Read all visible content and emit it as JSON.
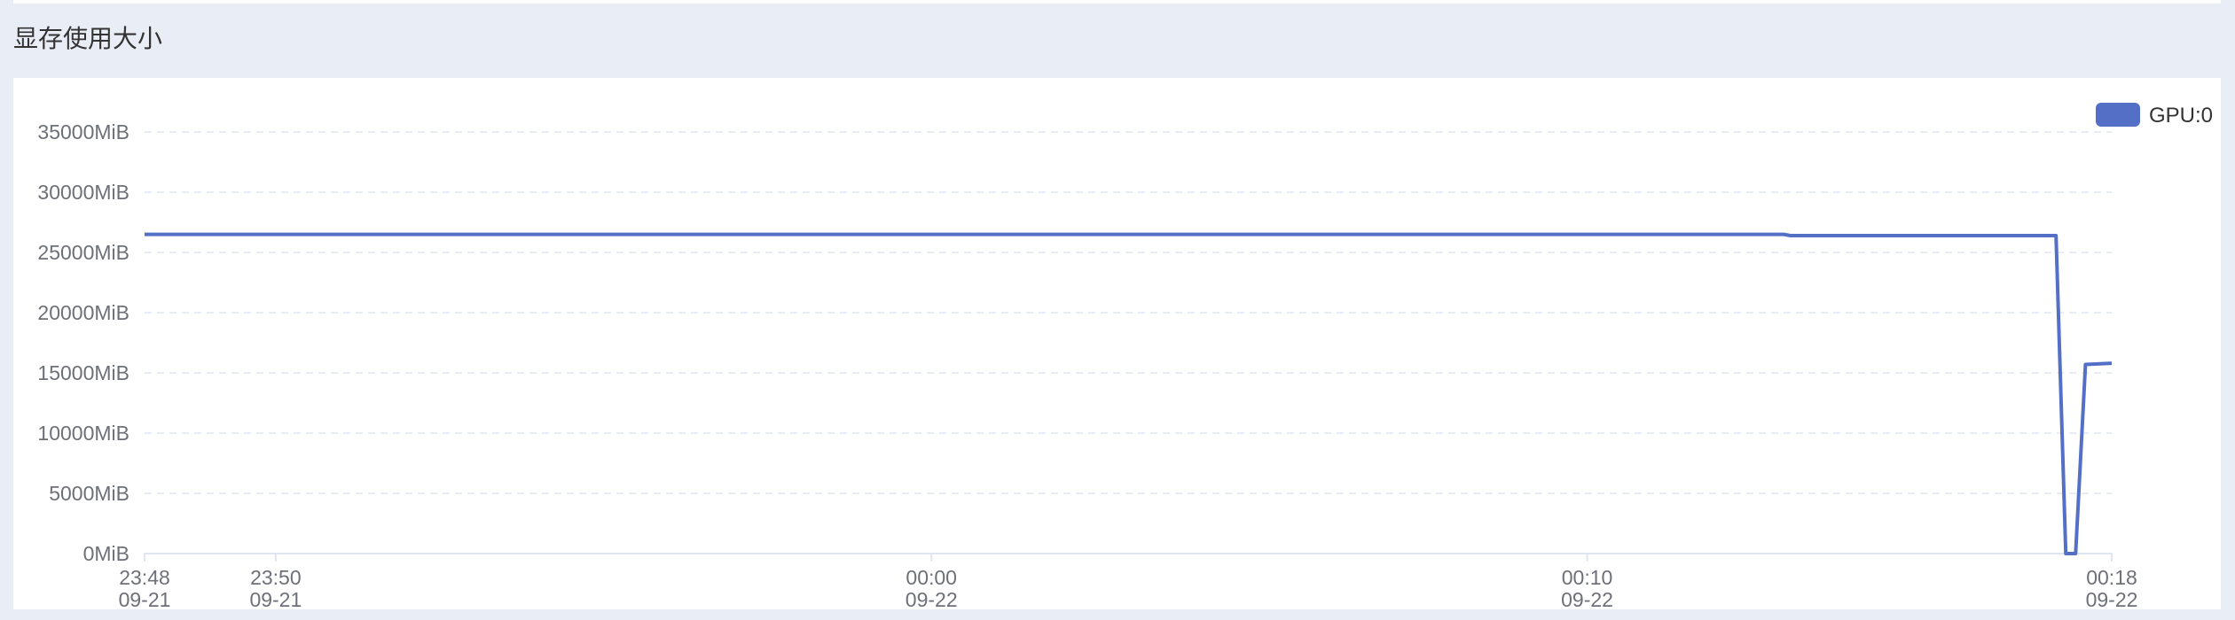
{
  "panel": {
    "title": "显存使用大小"
  },
  "colors": {
    "series": "#5470c6",
    "grid": "#e0e6f1",
    "axis": "#6e7079",
    "background": "#e9edf6"
  },
  "chart_data": {
    "type": "line",
    "title": "",
    "xlabel": "",
    "ylabel": "",
    "grid": true,
    "legend_position": "top-right",
    "x_ticks": [
      {
        "time": "23:48",
        "date": "09-21",
        "t": 0
      },
      {
        "time": "23:50",
        "date": "09-21",
        "t": 2
      },
      {
        "time": "00:00",
        "date": "09-22",
        "t": 12
      },
      {
        "time": "00:10",
        "date": "09-22",
        "t": 22
      },
      {
        "time": "00:18",
        "date": "09-22",
        "t": 30
      }
    ],
    "y_ticks": [
      "0MiB",
      "5000MiB",
      "10000MiB",
      "15000MiB",
      "20000MiB",
      "25000MiB",
      "30000MiB",
      "35000MiB"
    ],
    "ylim": [
      0,
      35000
    ],
    "xlim": [
      0,
      30
    ],
    "series": [
      {
        "name": "GPU:0",
        "points": [
          [
            0,
            26500
          ],
          [
            25,
            26500
          ],
          [
            25.1,
            26400
          ],
          [
            29.15,
            26400
          ],
          [
            29.3,
            0
          ],
          [
            29.45,
            0
          ],
          [
            29.6,
            15700
          ],
          [
            30,
            15800
          ]
        ]
      }
    ]
  }
}
